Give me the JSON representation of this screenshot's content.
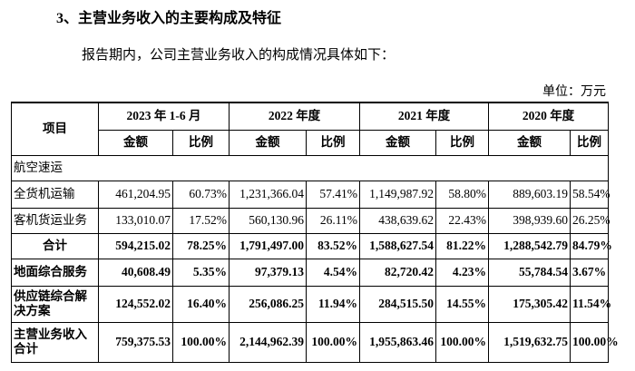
{
  "header": {
    "title": "3、主营业务收入的主要构成及特征"
  },
  "intro": "报告期内，公司主营业务收入的构成情况具体如下：",
  "unit": "单位：万元",
  "table": {
    "head": "项目",
    "periods": [
      "2023 年 1-6 月",
      "2022 年度",
      "2021 年度",
      "2020 年度"
    ],
    "subhead": [
      "金额",
      "比例",
      "金额",
      "比例",
      "金额",
      "比例",
      "金额",
      "比例"
    ],
    "rows": [
      {
        "label": "航空速运"
      },
      {
        "label": "全货机运输",
        "cells": [
          "461,204.95",
          "60.73%",
          "1,231,366.04",
          "57.41%",
          "1,149,987.92",
          "58.80%",
          "889,603.19",
          "58.54%"
        ]
      },
      {
        "label": "客机货运业务",
        "cells": [
          "133,010.07",
          "17.52%",
          "560,130.96",
          "26.11%",
          "438,639.62",
          "22.43%",
          "398,939.60",
          "26.25%"
        ]
      },
      {
        "label": "合计",
        "cells": [
          "594,215.02",
          "78.25%",
          "1,791,497.00",
          "83.52%",
          "1,588,627.54",
          "81.22%",
          "1,288,542.79",
          "84.79%"
        ]
      },
      {
        "label": "地面综合服务",
        "cells": [
          "40,608.49",
          "5.35%",
          "97,379.13",
          "4.54%",
          "82,720.42",
          "4.23%",
          "55,784.54",
          "3.67%"
        ]
      },
      {
        "label": "供应链综合解决方案",
        "cells": [
          "124,552.02",
          "16.40%",
          "256,086.25",
          "11.94%",
          "284,515.50",
          "14.55%",
          "175,305.42",
          "11.54%"
        ]
      },
      {
        "label": "主营业务收入合计",
        "cells": [
          "759,375.53",
          "100.00%",
          "2,144,962.39",
          "100.00%",
          "1,955,863.46",
          "100.00%",
          "1,519,632.75",
          "100.00%"
        ]
      }
    ]
  }
}
